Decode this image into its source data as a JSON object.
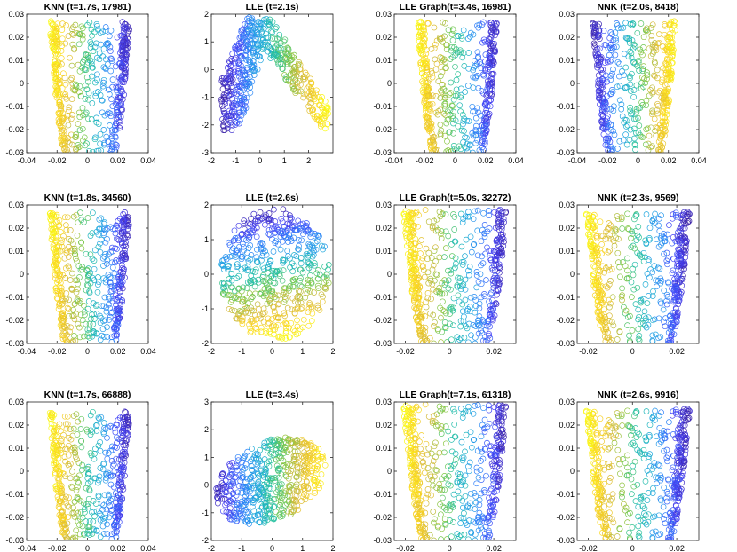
{
  "figure": {
    "rows": 3,
    "cols": 4
  },
  "chart_data": [
    {
      "type": "scatter",
      "title": "KNN (t=1.7s, 17981)",
      "xlim": [
        -0.04,
        0.04
      ],
      "ylim": [
        -0.03,
        0.03
      ],
      "xticks": [
        -0.04,
        -0.02,
        0,
        0.02,
        0.04
      ],
      "xtick_labels": [
        "-0.04",
        "-0.02",
        "0",
        "0.02",
        "0.04"
      ],
      "yticks": [
        -0.03,
        -0.02,
        -0.01,
        0,
        0.01,
        0.02,
        0.03
      ],
      "ytick_labels": [
        "-0.03",
        "-0.02",
        "-0.01",
        "0",
        "0.01",
        "0.02",
        "0.03"
      ],
      "shape": "vase",
      "x_extent": [
        -0.025,
        0.028
      ],
      "y_extent": [
        -0.03,
        0.027
      ],
      "gradient": "yellow-left-to-blue-right",
      "n_points": 520
    },
    {
      "type": "scatter",
      "title": "LLE (t=2.1s)",
      "xlim": [
        -2,
        3
      ],
      "ylim": [
        -3,
        2
      ],
      "xticks": [
        -2,
        -1,
        0,
        1,
        2
      ],
      "xtick_labels": [
        "-2",
        "-1",
        "0",
        "1",
        "2"
      ],
      "yticks": [
        -3,
        -2,
        -1,
        0,
        1,
        2
      ],
      "ytick_labels": [
        "-3",
        "-2",
        "-1",
        "0",
        "1",
        "2"
      ],
      "shape": "boomerang",
      "x_extent": [
        -1.6,
        2.8
      ],
      "y_extent": [
        -2.2,
        1.9
      ],
      "gradient": "blue-left-to-yellow-right",
      "n_points": 520
    },
    {
      "type": "scatter",
      "title": "LLE Graph(t=3.4s, 16981)",
      "xlim": [
        -0.04,
        0.04
      ],
      "ylim": [
        -0.03,
        0.03
      ],
      "xticks": [
        -0.04,
        -0.02,
        0,
        0.02,
        0.04
      ],
      "xtick_labels": [
        "-0.04",
        "-0.02",
        "0",
        "0.02",
        "0.04"
      ],
      "yticks": [
        -0.03,
        -0.02,
        -0.01,
        0,
        0.01,
        0.02,
        0.03
      ],
      "ytick_labels": [
        "-0.03",
        "-0.02",
        "-0.01",
        "0",
        "0.01",
        "0.02",
        "0.03"
      ],
      "shape": "vase",
      "x_extent": [
        -0.025,
        0.028
      ],
      "y_extent": [
        -0.03,
        0.027
      ],
      "gradient": "yellow-left-to-blue-right",
      "n_points": 520
    },
    {
      "type": "scatter",
      "title": "NNK (t=2.0s, 8418)",
      "xlim": [
        -0.04,
        0.04
      ],
      "ylim": [
        -0.03,
        0.03
      ],
      "xticks": [
        -0.04,
        -0.02,
        0,
        0.02,
        0.04
      ],
      "xtick_labels": [
        "-0.04",
        "-0.02",
        "0",
        "0.02",
        "0.04"
      ],
      "yticks": [
        -0.03,
        -0.02,
        -0.01,
        0,
        0.01,
        0.02,
        0.03
      ],
      "ytick_labels": [
        "-0.03",
        "-0.02",
        "-0.01",
        "0",
        "0.01",
        "0.02",
        "0.03"
      ],
      "shape": "vase",
      "x_extent": [
        -0.03,
        0.025
      ],
      "y_extent": [
        -0.03,
        0.027
      ],
      "gradient": "blue-left-to-yellow-right",
      "n_points": 520
    },
    {
      "type": "scatter",
      "title": "KNN (t=1.8s, 34560)",
      "xlim": [
        -0.04,
        0.04
      ],
      "ylim": [
        -0.03,
        0.03
      ],
      "xticks": [
        -0.04,
        -0.02,
        0,
        0.02,
        0.04
      ],
      "xtick_labels": [
        "-0.04",
        "-0.02",
        "0",
        "0.02",
        "0.04"
      ],
      "yticks": [
        -0.03,
        -0.02,
        -0.01,
        0,
        0.01,
        0.02,
        0.03
      ],
      "ytick_labels": [
        "-0.03",
        "-0.02",
        "-0.01",
        "0",
        "0.01",
        "0.02",
        "0.03"
      ],
      "shape": "vase",
      "x_extent": [
        -0.025,
        0.028
      ],
      "y_extent": [
        -0.03,
        0.027
      ],
      "gradient": "yellow-left-to-blue-right",
      "n_points": 520
    },
    {
      "type": "scatter",
      "title": "LLE (t=2.6s)",
      "xlim": [
        -2,
        2
      ],
      "ylim": [
        -2,
        2
      ],
      "xticks": [
        -2,
        -1,
        0,
        1,
        2
      ],
      "xtick_labels": [
        "-2",
        "-1",
        "0",
        "1",
        "2"
      ],
      "yticks": [
        -2,
        -1,
        0,
        1,
        2
      ],
      "ytick_labels": [
        "-2",
        "-1",
        "0",
        "1",
        "2"
      ],
      "shape": "disk",
      "x_extent": [
        -1.7,
        1.9
      ],
      "y_extent": [
        -1.9,
        1.9
      ],
      "gradient": "blue-top-to-yellow-bottom",
      "n_points": 560
    },
    {
      "type": "scatter",
      "title": "LLE Graph(t=5.0s, 32272)",
      "xlim": [
        -0.025,
        0.03
      ],
      "ylim": [
        -0.03,
        0.03
      ],
      "xticks": [
        -0.02,
        0,
        0.02
      ],
      "xtick_labels": [
        "-0.02",
        "0",
        "0.02"
      ],
      "yticks": [
        -0.03,
        -0.02,
        -0.01,
        0,
        0.01,
        0.02,
        0.03
      ],
      "ytick_labels": [
        "-0.03",
        "-0.02",
        "-0.01",
        "0",
        "0.01",
        "0.02",
        "0.03"
      ],
      "shape": "vase",
      "x_extent": [
        -0.021,
        0.026
      ],
      "y_extent": [
        -0.03,
        0.028
      ],
      "gradient": "yellow-left-to-blue-right",
      "n_points": 560
    },
    {
      "type": "scatter",
      "title": "NNK (t=2.3s, 9569)",
      "xlim": [
        -0.025,
        0.03
      ],
      "ylim": [
        -0.03,
        0.03
      ],
      "xticks": [
        -0.02,
        0,
        0.02
      ],
      "xtick_labels": [
        "-0.02",
        "0",
        "0.02"
      ],
      "yticks": [
        -0.03,
        -0.02,
        -0.01,
        0,
        0.01,
        0.02,
        0.03
      ],
      "ytick_labels": [
        "-0.03",
        "-0.02",
        "-0.01",
        "0",
        "0.01",
        "0.02",
        "0.03"
      ],
      "shape": "vase",
      "x_extent": [
        -0.021,
        0.026
      ],
      "y_extent": [
        -0.03,
        0.027
      ],
      "gradient": "yellow-left-to-blue-right",
      "n_points": 560
    },
    {
      "type": "scatter",
      "title": "KNN (t=1.7s, 66888)",
      "xlim": [
        -0.04,
        0.04
      ],
      "ylim": [
        -0.03,
        0.03
      ],
      "xticks": [
        -0.04,
        -0.02,
        0,
        0.02,
        0.04
      ],
      "xtick_labels": [
        "-0.04",
        "-0.02",
        "0",
        "0.02",
        "0.04"
      ],
      "yticks": [
        -0.03,
        -0.02,
        -0.01,
        0,
        0.01,
        0.02,
        0.03
      ],
      "ytick_labels": [
        "-0.03",
        "-0.02",
        "-0.01",
        "0",
        "0.01",
        "0.02",
        "0.03"
      ],
      "shape": "vase",
      "x_extent": [
        -0.025,
        0.028
      ],
      "y_extent": [
        -0.03,
        0.026
      ],
      "gradient": "yellow-left-to-blue-right",
      "n_points": 520
    },
    {
      "type": "scatter",
      "title": "LLE (t=3.4s)",
      "xlim": [
        -2,
        2
      ],
      "ylim": [
        -2,
        3
      ],
      "xticks": [
        -2,
        -1,
        0,
        1,
        2
      ],
      "xtick_labels": [
        "-2",
        "-1",
        "0",
        "1",
        "2"
      ],
      "yticks": [
        -2,
        -1,
        0,
        1,
        2,
        3
      ],
      "ytick_labels": [
        "-2",
        "-1",
        "0",
        "1",
        "2",
        "3"
      ],
      "shape": "ellipse",
      "x_extent": [
        -1.9,
        1.8
      ],
      "y_extent": [
        -1.9,
        2.2
      ],
      "gradient": "blue-left-to-yellow-right",
      "n_points": 560
    },
    {
      "type": "scatter",
      "title": "LLE Graph(t=7.1s, 61318)",
      "xlim": [
        -0.025,
        0.03
      ],
      "ylim": [
        -0.03,
        0.03
      ],
      "xticks": [
        -0.02,
        0,
        0.02
      ],
      "xtick_labels": [
        "-0.02",
        "0",
        "0.02"
      ],
      "yticks": [
        -0.03,
        -0.02,
        -0.01,
        0,
        0.01,
        0.02,
        0.03
      ],
      "ytick_labels": [
        "-0.03",
        "-0.02",
        "-0.01",
        "0",
        "0.01",
        "0.02",
        "0.03"
      ],
      "shape": "vase",
      "x_extent": [
        -0.021,
        0.026
      ],
      "y_extent": [
        -0.03,
        0.029
      ],
      "gradient": "yellow-left-to-blue-right",
      "n_points": 560
    },
    {
      "type": "scatter",
      "title": "NNK (t=2.6s, 9916)",
      "xlim": [
        -0.025,
        0.03
      ],
      "ylim": [
        -0.03,
        0.03
      ],
      "xticks": [
        -0.02,
        0,
        0.02
      ],
      "xtick_labels": [
        "-0.02",
        "0",
        "0.02"
      ],
      "yticks": [
        -0.03,
        -0.02,
        -0.01,
        0,
        0.01,
        0.02,
        0.03
      ],
      "ytick_labels": [
        "-0.03",
        "-0.02",
        "-0.01",
        "0",
        "0.01",
        "0.02",
        "0.03"
      ],
      "shape": "vase",
      "x_extent": [
        -0.021,
        0.026
      ],
      "y_extent": [
        -0.03,
        0.027
      ],
      "gradient": "yellow-left-to-blue-right",
      "n_points": 560
    }
  ],
  "colormap": [
    "#3e26a8",
    "#4743f6",
    "#2f82f9",
    "#1fa9dd",
    "#25c1a1",
    "#7cc845",
    "#d6b93a",
    "#fbd424",
    "#f9fb15"
  ]
}
